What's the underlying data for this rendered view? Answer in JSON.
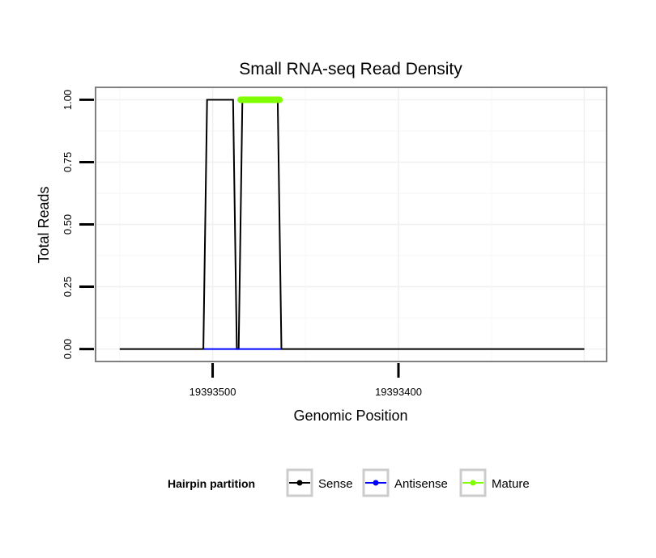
{
  "chart_data": {
    "type": "line",
    "title": "Small RNA-seq Read Density",
    "xlabel": "Genomic Position",
    "ylabel": "Total Reads",
    "x_reversed": true,
    "xlim": [
      19393563,
      19393288
    ],
    "ylim": [
      -0.05,
      1.05
    ],
    "yticks": [
      0.0,
      0.25,
      0.5,
      0.75,
      1.0
    ],
    "ytick_labels": [
      "0.00",
      "0.25",
      "0.50",
      "0.75",
      "1.00"
    ],
    "xticks": [
      19393500,
      19393400
    ],
    "xtick_labels": [
      "19393500",
      "19393400"
    ],
    "grid": true,
    "series": [
      {
        "name": "Sense",
        "color": "#000000",
        "x": [
          19393550,
          19393505,
          19393503,
          19393489,
          19393487,
          19393486,
          19393484,
          19393465,
          19393463,
          19393300
        ],
        "y": [
          0,
          0,
          1,
          1,
          0,
          0,
          1,
          1,
          0,
          0
        ]
      },
      {
        "name": "Antisense",
        "color": "#0000ff",
        "x": [
          19393505,
          19393463
        ],
        "y": [
          0,
          0
        ]
      },
      {
        "name": "Mature",
        "color": "#7fff00",
        "x": [
          19393485,
          19393464
        ],
        "y": [
          1,
          1
        ]
      }
    ],
    "legend": {
      "title": "Hairpin partition",
      "position": "bottom",
      "entries": [
        {
          "label": "Sense",
          "color": "#000000"
        },
        {
          "label": "Antisense",
          "color": "#0000ff"
        },
        {
          "label": "Mature",
          "color": "#7fff00"
        }
      ]
    }
  }
}
